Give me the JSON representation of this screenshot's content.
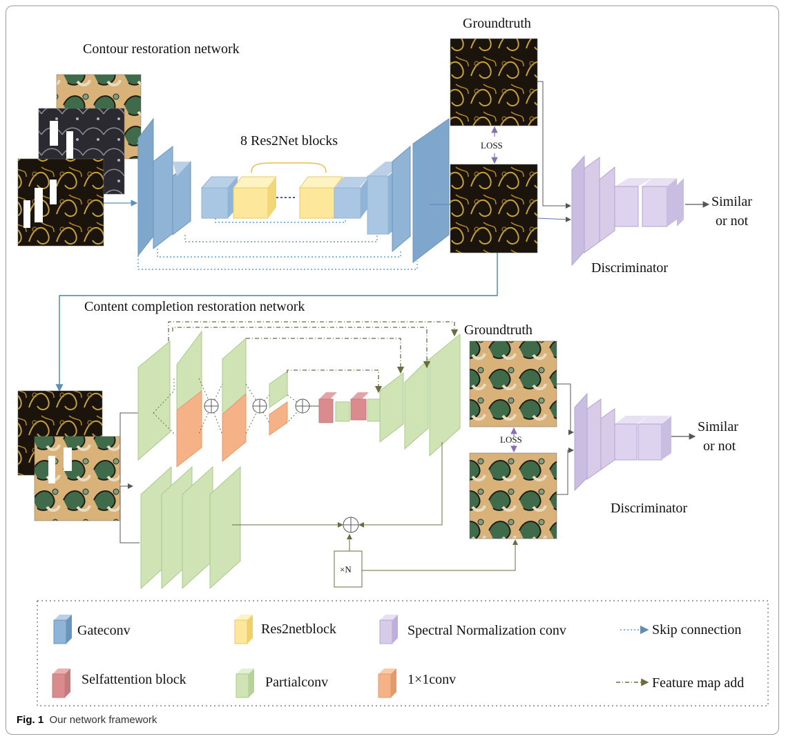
{
  "top": {
    "title": "Contour restoration network",
    "res2net_label": "8 Res2Net blocks",
    "groundtruth": "Groundtruth",
    "loss": "LOSS",
    "discriminator": "Discriminator",
    "output_line1": "Similar",
    "output_line2": "or not"
  },
  "bottom": {
    "title": "Content completion restoration network",
    "groundtruth": "Groundtruth",
    "loss": "LOSS",
    "discriminator": "Discriminator",
    "output_line1": "Similar",
    "output_line2": "or not",
    "repeat": "×N"
  },
  "legend": {
    "gateconv": "Gateconv",
    "res2netblock": "Res2netblock",
    "spectral": "Spectral Normalization conv",
    "skip": "Skip connection",
    "selfattention": "Selfattention block",
    "partialconv": "Partialconv",
    "conv1x1": "1×1conv",
    "featureadd": "Feature map add"
  },
  "caption": {
    "label": "Fig. 1",
    "text": "Our network framework"
  },
  "colors": {
    "gateconv": "#8fb4d6",
    "res2net": "#fde79a",
    "spectral": "#d7cbe8",
    "selfattention": "#d98b8d",
    "partialconv": "#cfe3b5",
    "conv1x1": "#f5b287",
    "skip": "#5b9bd5",
    "featureadd": "#6b6b3d"
  }
}
